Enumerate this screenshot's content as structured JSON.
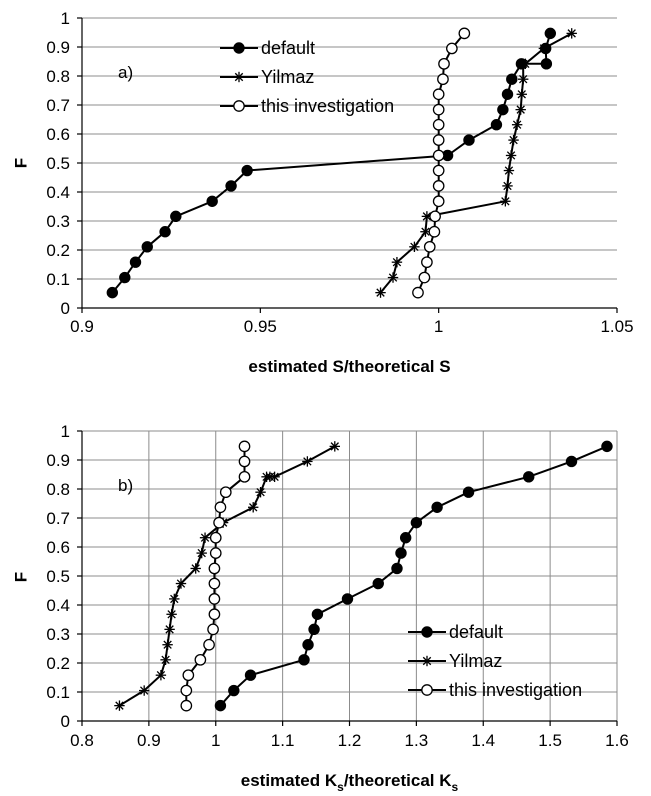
{
  "chart_data": [
    {
      "type": "line",
      "panel_label": "a)",
      "xlabel": "estimated S/theoretical S",
      "ylabel": "F",
      "xlim": [
        0.9,
        1.05
      ],
      "ylim": [
        0,
        1
      ],
      "xticks": [
        "0.9",
        "0.95",
        "1",
        "1.05"
      ],
      "xtick_values": [
        0.9,
        0.95,
        1.0,
        1.05
      ],
      "yticks": [
        "0",
        "0.1",
        "0.2",
        "0.3",
        "0.4",
        "0.5",
        "0.6",
        "0.7",
        "0.8",
        "0.9",
        "1"
      ],
      "ytick_values": [
        0,
        0.1,
        0.2,
        0.3,
        0.4,
        0.5,
        0.6,
        0.7,
        0.8,
        0.9,
        1.0
      ],
      "grid": "horizontal",
      "legend_position": "top-left",
      "series": [
        {
          "name": "default",
          "marker": "filled-circle",
          "x": [
            0.9085,
            0.912,
            0.915,
            0.9183,
            0.9233,
            0.9263,
            0.9365,
            0.9418,
            0.9463,
            1.0025,
            1.0085,
            1.0162,
            1.018,
            1.0193,
            1.0205,
            1.0232,
            1.0302,
            1.03,
            1.0313
          ],
          "y": [
            0.053,
            0.105,
            0.158,
            0.211,
            0.263,
            0.316,
            0.368,
            0.421,
            0.474,
            0.526,
            0.579,
            0.632,
            0.684,
            0.737,
            0.789,
            0.842,
            0.842,
            0.895,
            0.947
          ]
        },
        {
          "name": "Yilmaz",
          "marker": "star",
          "x": [
            0.9837,
            0.9872,
            0.9883,
            0.9932,
            0.9963,
            0.9967,
            1.0187,
            1.0193,
            1.0197,
            1.0203,
            1.021,
            1.022,
            1.023,
            1.0233,
            1.0237,
            1.0237,
            1.0243,
            1.0295,
            1.0373
          ],
          "y": [
            0.053,
            0.105,
            0.158,
            0.211,
            0.263,
            0.316,
            0.368,
            0.421,
            0.474,
            0.526,
            0.579,
            0.632,
            0.684,
            0.737,
            0.789,
            0.842,
            0.842,
            0.895,
            0.947
          ]
        },
        {
          "name": "this investigation",
          "marker": "open-circle",
          "x": [
            0.9942,
            0.996,
            0.9967,
            0.9975,
            0.9988,
            0.999,
            1.0,
            1.0,
            1.0,
            1.0,
            1.0,
            1.0,
            1.0,
            1.0,
            1.0012,
            1.0015,
            1.0037,
            1.0072
          ],
          "y": [
            0.053,
            0.105,
            0.158,
            0.211,
            0.263,
            0.316,
            0.368,
            0.421,
            0.474,
            0.526,
            0.579,
            0.632,
            0.684,
            0.737,
            0.789,
            0.842,
            0.895,
            0.947
          ]
        }
      ]
    },
    {
      "type": "line",
      "panel_label": "b)",
      "xlabel": "estimated K",
      "xlabel_sub": "s",
      "xlabel_mid": "/theoretical K",
      "xlabel_sub2": "s",
      "ylabel": "F",
      "xlim": [
        0.8,
        1.6
      ],
      "ylim": [
        0,
        1
      ],
      "xticks": [
        "0.8",
        "0.9",
        "1",
        "1.1",
        "1.2",
        "1.3",
        "1.4",
        "1.5",
        "1.6"
      ],
      "xtick_values": [
        0.8,
        0.9,
        1.0,
        1.1,
        1.2,
        1.3,
        1.4,
        1.5,
        1.6
      ],
      "yticks": [
        "0",
        "0.1",
        "0.2",
        "0.3",
        "0.4",
        "0.5",
        "0.6",
        "0.7",
        "0.8",
        "0.9",
        "1"
      ],
      "ytick_values": [
        0,
        0.1,
        0.2,
        0.3,
        0.4,
        0.5,
        0.6,
        0.7,
        0.8,
        0.9,
        1.0
      ],
      "grid": "both",
      "legend_position": "bottom-right",
      "series": [
        {
          "name": "default",
          "marker": "filled-circle",
          "x": [
            1.007,
            1.027,
            1.052,
            1.132,
            1.138,
            1.147,
            1.152,
            1.197,
            1.243,
            1.271,
            1.277,
            1.284,
            1.3,
            1.331,
            1.378,
            1.468,
            1.532,
            1.585
          ],
          "y": [
            0.053,
            0.105,
            0.158,
            0.211,
            0.263,
            0.316,
            0.368,
            0.421,
            0.474,
            0.526,
            0.579,
            0.632,
            0.684,
            0.737,
            0.789,
            0.842,
            0.895,
            0.947
          ]
        },
        {
          "name": "Yilmaz",
          "marker": "star",
          "x": [
            0.856,
            0.893,
            0.918,
            0.925,
            0.928,
            0.931,
            0.934,
            0.938,
            0.948,
            0.97,
            0.979,
            0.984,
            1.011,
            1.056,
            1.067,
            1.076,
            1.081,
            1.088,
            1.137,
            1.178
          ],
          "y": [
            0.053,
            0.105,
            0.158,
            0.211,
            0.263,
            0.316,
            0.368,
            0.421,
            0.474,
            0.526,
            0.579,
            0.632,
            0.684,
            0.737,
            0.789,
            0.842,
            0.842,
            0.842,
            0.895,
            0.947
          ]
        },
        {
          "name": "this investigation",
          "marker": "open-circle",
          "x": [
            0.956,
            0.956,
            0.959,
            0.977,
            0.99,
            0.996,
            0.998,
            0.998,
            0.998,
            0.998,
            1.0,
            1.0,
            1.005,
            1.007,
            1.015,
            1.043,
            1.043,
            1.043
          ],
          "y": [
            0.053,
            0.105,
            0.158,
            0.211,
            0.263,
            0.316,
            0.368,
            0.421,
            0.474,
            0.526,
            0.579,
            0.632,
            0.684,
            0.737,
            0.789,
            0.842,
            0.895,
            0.947
          ]
        }
      ]
    }
  ]
}
